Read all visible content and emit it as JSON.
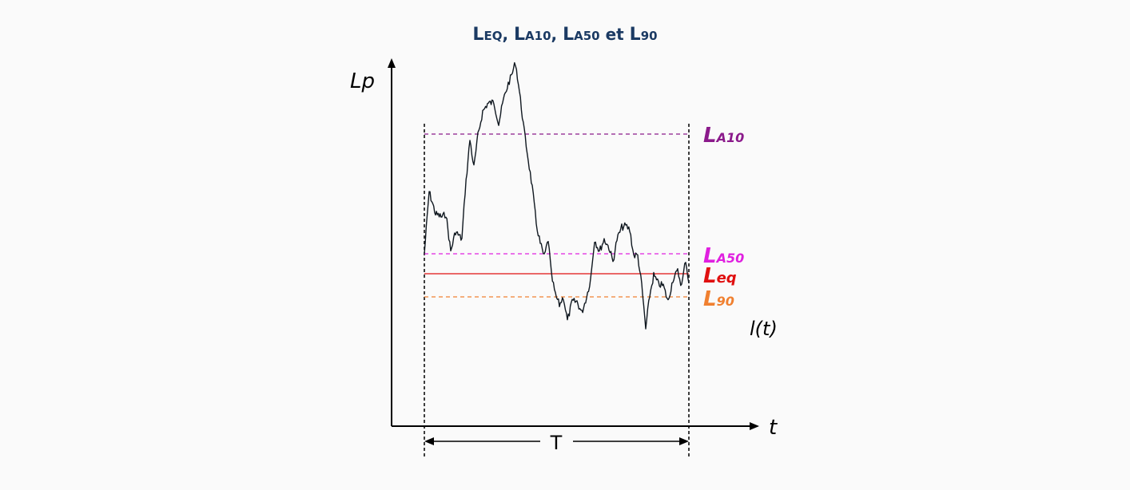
{
  "title": {
    "parts": [
      {
        "main": "L",
        "sub": "EQ",
        "sep": ", "
      },
      {
        "main": "L",
        "sub": "A10",
        "sep": ", "
      },
      {
        "main": "L",
        "sub": "A50",
        "sep": " "
      },
      {
        "conj": "et"
      },
      {
        "main": "L",
        "sub": "90",
        "sep": ""
      }
    ]
  },
  "axes": {
    "y_label": "Lp",
    "x_label": "t",
    "curve_label": "l(t)",
    "period_label": "T"
  },
  "levels": {
    "la10": {
      "main": "L",
      "sub": "A10",
      "color": "#8b1a8b",
      "style": "dashed"
    },
    "la50": {
      "main": "L",
      "sub": "A50",
      "color": "#e020e0",
      "style": "dashed"
    },
    "leq": {
      "main": "L",
      "sub": "eq",
      "color": "#e01010",
      "style": "solid"
    },
    "l90": {
      "main": "L",
      "sub": "90",
      "color": "#f08030",
      "style": "dashed"
    }
  },
  "colors": {
    "signal": "#101820",
    "axis": "#000000"
  }
}
